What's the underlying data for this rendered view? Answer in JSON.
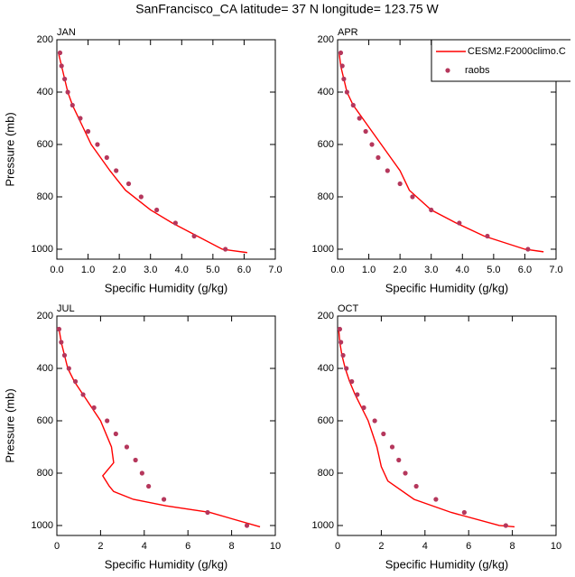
{
  "title": "SanFrancisco_CA  latitude= 37 N longitude= 123.75 W",
  "chart_data": [
    {
      "type": "line",
      "panel_label": "JAN",
      "xlabel": "Specific Humidity (g/kg)",
      "ylabel": "Pressure (mb)",
      "xlim": [
        0,
        7
      ],
      "xticks": [
        {
          "value": 0,
          "label": "0.0"
        },
        {
          "value": 1,
          "label": "1.0"
        },
        {
          "value": 2,
          "label": "2.0"
        },
        {
          "value": 3,
          "label": "3.0"
        },
        {
          "value": 4,
          "label": "4.0"
        },
        {
          "value": 5,
          "label": "5.0"
        },
        {
          "value": 6,
          "label": "6.0"
        },
        {
          "value": 7,
          "label": "7.0"
        }
      ],
      "ylim": [
        1038,
        200
      ],
      "yticks": [
        200,
        400,
        600,
        800,
        1000
      ],
      "series": [
        {
          "mode": "line",
          "color": "#ff0000",
          "x": [
            0.05,
            0.15,
            0.25,
            0.35,
            0.5,
            0.7,
            0.9,
            1.1,
            1.4,
            1.7,
            2.2,
            3.0,
            3.7,
            4.5,
            5.3,
            6.1
          ],
          "values": [
            250,
            300,
            350,
            400,
            450,
            500,
            550,
            600,
            650,
            700,
            775,
            850,
            900,
            950,
            1000,
            1013
          ]
        },
        {
          "mode": "markers",
          "color": "#b5375c",
          "x": [
            0.1,
            0.15,
            0.25,
            0.35,
            0.5,
            0.75,
            1.0,
            1.3,
            1.6,
            1.9,
            2.3,
            2.7,
            3.2,
            3.8,
            4.4,
            5.4
          ],
          "values": [
            250,
            300,
            350,
            400,
            450,
            500,
            550,
            600,
            650,
            700,
            750,
            800,
            850,
            900,
            950,
            1000
          ]
        }
      ]
    },
    {
      "type": "line",
      "panel_label": "APR",
      "xlabel": "Specific Humidity (g/kg)",
      "legend": "upper right",
      "xlim": [
        0,
        7
      ],
      "xticks": [
        {
          "value": 0,
          "label": "0.0"
        },
        {
          "value": 1,
          "label": "1.0"
        },
        {
          "value": 2,
          "label": "2.0"
        },
        {
          "value": 3,
          "label": "3.0"
        },
        {
          "value": 4,
          "label": "4.0"
        },
        {
          "value": 5,
          "label": "5.0"
        },
        {
          "value": 6,
          "label": "6.0"
        },
        {
          "value": 7,
          "label": "7.0"
        }
      ],
      "ylim": [
        1038,
        200
      ],
      "yticks": [
        200,
        400,
        600,
        800,
        1000
      ],
      "series": [
        {
          "name": "CESM2.F2000climo.C",
          "mode": "line",
          "color": "#ff0000",
          "x": [
            0.05,
            0.1,
            0.2,
            0.3,
            0.5,
            0.8,
            1.1,
            1.4,
            1.7,
            2.0,
            2.3,
            3.0,
            3.8,
            4.7,
            6.0,
            6.6
          ],
          "values": [
            250,
            300,
            350,
            400,
            450,
            500,
            550,
            600,
            650,
            700,
            775,
            850,
            900,
            950,
            1000,
            1010
          ]
        },
        {
          "name": "raobs",
          "mode": "markers",
          "color": "#b5375c",
          "x": [
            0.1,
            0.15,
            0.2,
            0.3,
            0.5,
            0.7,
            0.9,
            1.1,
            1.3,
            1.6,
            2.0,
            2.4,
            3.0,
            3.9,
            4.8,
            6.1
          ],
          "values": [
            250,
            300,
            350,
            400,
            450,
            500,
            550,
            600,
            650,
            700,
            750,
            800,
            850,
            900,
            950,
            1000
          ]
        }
      ]
    },
    {
      "type": "line",
      "panel_label": "JUL",
      "xlabel": "Specific Humidity (g/kg)",
      "ylabel": "Pressure (mb)",
      "xlim": [
        0,
        10
      ],
      "xticks": [
        0,
        2,
        4,
        6,
        8,
        10
      ],
      "ylim": [
        1038,
        200
      ],
      "yticks": [
        200,
        400,
        600,
        800,
        1000
      ],
      "series": [
        {
          "mode": "line",
          "color": "#ff0000",
          "x": [
            0.1,
            0.2,
            0.35,
            0.5,
            0.8,
            1.2,
            1.6,
            2.0,
            2.5,
            2.6,
            2.1,
            2.4,
            2.6,
            3.5,
            5.0,
            7.0,
            9.3
          ],
          "values": [
            250,
            300,
            350,
            400,
            450,
            500,
            550,
            600,
            700,
            760,
            810,
            850,
            870,
            900,
            925,
            950,
            1005
          ]
        },
        {
          "mode": "markers",
          "color": "#b5375c",
          "x": [
            0.1,
            0.2,
            0.35,
            0.55,
            0.85,
            1.2,
            1.7,
            2.3,
            2.7,
            3.2,
            3.6,
            3.9,
            4.2,
            4.9,
            6.9,
            8.7
          ],
          "values": [
            250,
            300,
            350,
            400,
            450,
            500,
            550,
            600,
            650,
            700,
            750,
            800,
            850,
            900,
            950,
            1000
          ]
        }
      ]
    },
    {
      "type": "line",
      "panel_label": "OCT",
      "xlabel": "Specific Humidity (g/kg)",
      "xlim": [
        0,
        10
      ],
      "xticks": [
        0,
        2,
        4,
        6,
        8,
        10
      ],
      "ylim": [
        1038,
        200
      ],
      "yticks": [
        200,
        400,
        600,
        800,
        1000
      ],
      "series": [
        {
          "mode": "line",
          "color": "#ff0000",
          "x": [
            0.05,
            0.1,
            0.2,
            0.35,
            0.55,
            0.8,
            1.1,
            1.4,
            1.6,
            1.8,
            2.0,
            2.3,
            3.5,
            5.2,
            7.4,
            8.1
          ],
          "values": [
            250,
            300,
            350,
            400,
            450,
            500,
            550,
            600,
            650,
            700,
            775,
            830,
            900,
            950,
            1000,
            1005
          ]
        },
        {
          "mode": "markers",
          "color": "#b5375c",
          "x": [
            0.1,
            0.15,
            0.25,
            0.4,
            0.65,
            0.9,
            1.2,
            1.7,
            2.1,
            2.5,
            2.8,
            3.1,
            3.6,
            4.5,
            5.8,
            7.7
          ],
          "values": [
            250,
            300,
            350,
            400,
            450,
            500,
            550,
            600,
            650,
            700,
            750,
            800,
            850,
            900,
            950,
            1000
          ]
        }
      ]
    }
  ]
}
